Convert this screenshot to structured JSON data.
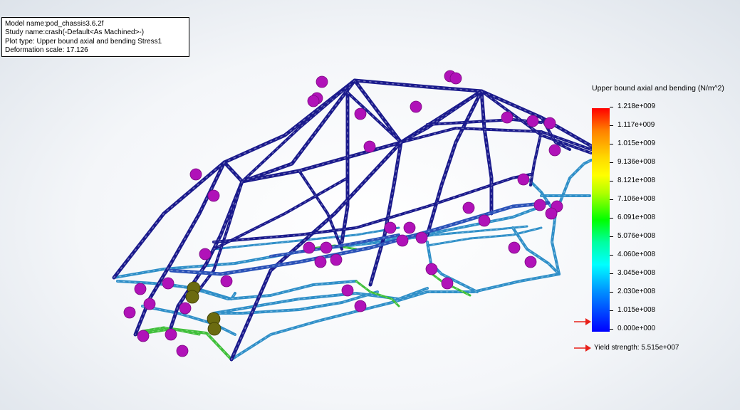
{
  "info": {
    "model_name": "Model name:pod_chassis3.6.2f",
    "study_name": "Study name:crash(-Default<As Machined>-)",
    "plot_type": "Plot type: Upper bound axial and bending Stress1",
    "deformation_scale": "Deformation scale: 17.126"
  },
  "legend": {
    "title": "Upper bound axial and bending (N/m^2)",
    "ticks": [
      "1.218e+009",
      "1.117e+009",
      "1.015e+009",
      "9.136e+008",
      "8.121e+008",
      "7.106e+008",
      "6.091e+008",
      "5.076e+008",
      "4.060e+008",
      "3.045e+008",
      "2.030e+008",
      "1.015e+008",
      "0.000e+000"
    ],
    "yield_label": "Yield strength: 5.515e+007",
    "marker_color": "#e8201a"
  },
  "colors": {
    "frame_dark": "#1a1a8c",
    "frame_mid": "#2a52b8",
    "frame_light": "#2f8fc8",
    "stress_green": "#3fbf3a",
    "restraint_ball": "#b012b8",
    "load_ball": "#6b6b10"
  }
}
